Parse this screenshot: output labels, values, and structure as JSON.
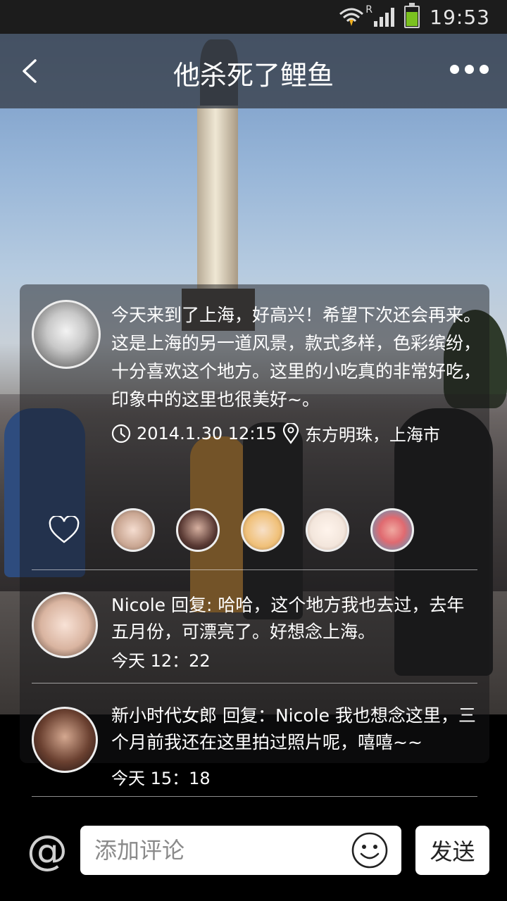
{
  "status_bar": {
    "time": "19:53",
    "roaming": "R"
  },
  "header": {
    "title": "他杀死了鲤鱼"
  },
  "post": {
    "text": "今天来到了上海，好高兴！希望下次还会再来。这是上海的另一道风景，款式多样，色彩缤纷，十分喜欢这个地方。这里的小吃真的非常好吃，印象中的这里也很美好~。",
    "datetime": "2014.1.30 12:15",
    "location": "东方明珠，上海市"
  },
  "likes": {
    "icon": "heart-icon",
    "avatar_colors": [
      "#e8d2c3",
      "#5a3a34",
      "#f0c078",
      "#f3e6dc",
      "#4aa0c8"
    ]
  },
  "comments": [
    {
      "text": "Nicole 回复: 哈哈，这个地方我也去过，去年五月份，可漂亮了。好想念上海。",
      "time": "今天 12：22"
    },
    {
      "text": "新小时代女郎 回复：Nicole 我也想念这里，三个月前我还在这里拍过照片呢，嘻嘻~~",
      "time": "今天 15：18"
    }
  ],
  "composer": {
    "at_symbol": "@",
    "placeholder": "添加评论",
    "send_label": "发送"
  },
  "colors": {
    "battery": "#7bc120",
    "header_bg": "#373e48"
  }
}
